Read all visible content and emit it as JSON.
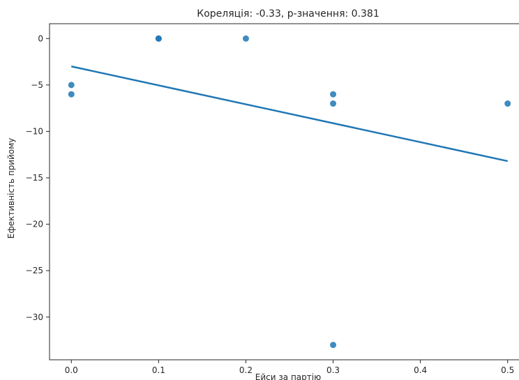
{
  "chart_data": {
    "type": "scatter",
    "title": "Кореляція: -0.33, p-значення: 0.381",
    "xlabel": "Ейси за партію",
    "ylabel": "Ефективність прийому",
    "xlim": [
      -0.025,
      0.525
    ],
    "ylim": [
      -34.6,
      1.6
    ],
    "xticks": [
      0.0,
      0.1,
      0.2,
      0.3,
      0.4,
      0.5
    ],
    "xtick_labels": [
      "0.0",
      "0.1",
      "0.2",
      "0.3",
      "0.4",
      "0.5"
    ],
    "yticks": [
      0,
      -5,
      -10,
      -15,
      -20,
      -25,
      -30
    ],
    "ytick_labels": [
      "0",
      "−5",
      "−10",
      "−15",
      "−20",
      "−25",
      "−30"
    ],
    "grid": false,
    "points": [
      {
        "x": 0.0,
        "y": -5
      },
      {
        "x": 0.0,
        "y": -6
      },
      {
        "x": 0.1,
        "y": 0
      },
      {
        "x": 0.1,
        "y": 0
      },
      {
        "x": 0.2,
        "y": 0
      },
      {
        "x": 0.3,
        "y": -6
      },
      {
        "x": 0.3,
        "y": -7
      },
      {
        "x": 0.3,
        "y": -33
      },
      {
        "x": 0.5,
        "y": -7
      }
    ],
    "trend_line": {
      "x": [
        0.0,
        0.5
      ],
      "y": [
        -3.0,
        -13.2
      ]
    },
    "colors": {
      "points": "#1f77b4",
      "line": "#1f77b4"
    }
  }
}
